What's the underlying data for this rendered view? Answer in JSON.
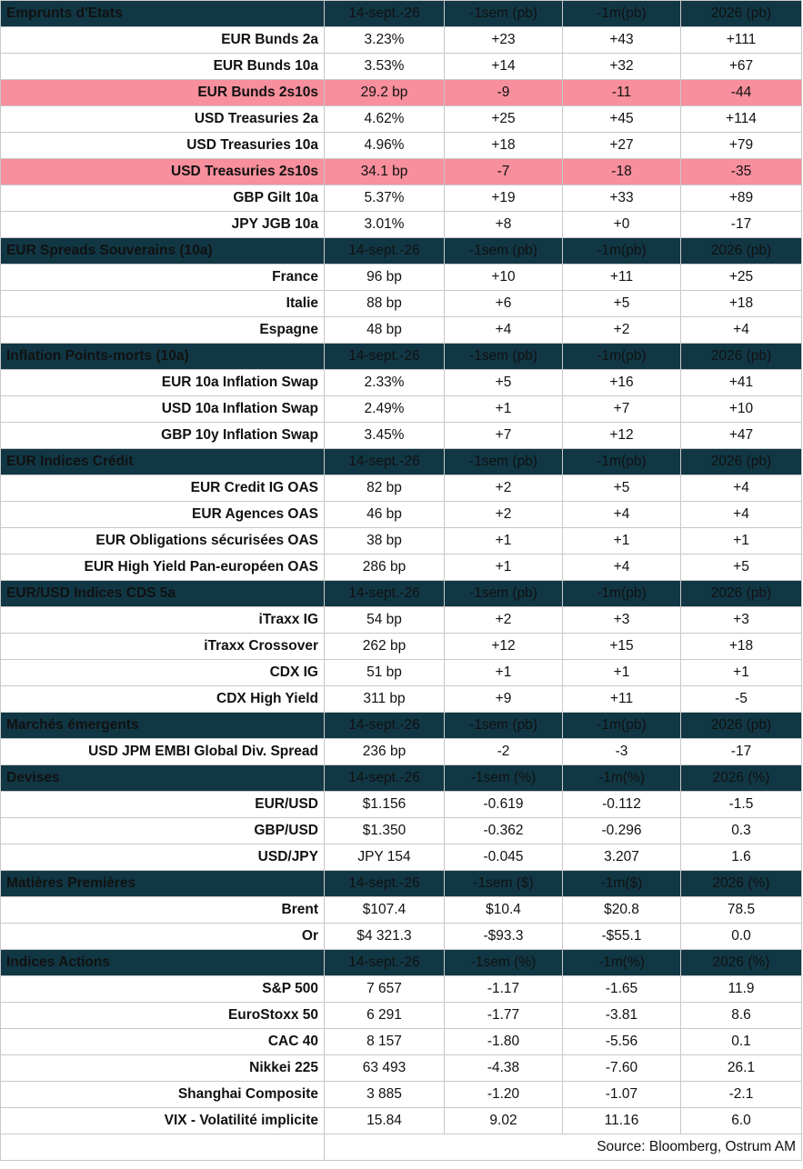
{
  "source": "Source: Bloomberg, Ostrum AM",
  "colors": {
    "header_bg": "#113745",
    "highlight_bg": "#f78f9c"
  },
  "sections": [
    {
      "title": "Emprunts d'Etats",
      "columns": [
        "14-sept.-26",
        "-1sem (pb)",
        "-1m(pb)",
        "2026 (pb)"
      ],
      "rows": [
        {
          "label": "EUR Bunds 2a",
          "values": [
            "3.23%",
            "+23",
            "+43",
            "+111"
          ],
          "highlight": false
        },
        {
          "label": "EUR Bunds 10a",
          "values": [
            "3.53%",
            "+14",
            "+32",
            "+67"
          ],
          "highlight": false
        },
        {
          "label": "EUR Bunds 2s10s",
          "values": [
            "29.2 bp",
            "-9",
            "-11",
            "-44"
          ],
          "highlight": true
        },
        {
          "label": "USD Treasuries 2a",
          "values": [
            "4.62%",
            "+25",
            "+45",
            "+114"
          ],
          "highlight": false
        },
        {
          "label": "USD Treasuries 10a",
          "values": [
            "4.96%",
            "+18",
            "+27",
            "+79"
          ],
          "highlight": false
        },
        {
          "label": "USD Treasuries 2s10s",
          "values": [
            "34.1 bp",
            "-7",
            "-18",
            "-35"
          ],
          "highlight": true
        },
        {
          "label": "GBP Gilt 10a",
          "values": [
            "5.37%",
            "+19",
            "+33",
            "+89"
          ],
          "highlight": false
        },
        {
          "label": "JPY JGB  10a",
          "values": [
            "3.01%",
            "+8",
            "+0",
            "-17"
          ],
          "highlight": false
        }
      ]
    },
    {
      "title": "EUR Spreads Souverains (10a)",
      "columns": [
        "14-sept.-26",
        "-1sem (pb)",
        "-1m(pb)",
        "2026 (pb)"
      ],
      "rows": [
        {
          "label": "France",
          "values": [
            "96 bp",
            "+10",
            "+11",
            "+25"
          ],
          "highlight": false
        },
        {
          "label": "Italie",
          "values": [
            "88 bp",
            "+6",
            "+5",
            "+18"
          ],
          "highlight": false
        },
        {
          "label": "Espagne",
          "values": [
            "48 bp",
            "+4",
            "+2",
            "+4"
          ],
          "highlight": false
        }
      ]
    },
    {
      "title": " Inflation Points-morts (10a)",
      "columns": [
        "14-sept.-26",
        "-1sem (pb)",
        "-1m(pb)",
        "2026 (pb)"
      ],
      "rows": [
        {
          "label": "EUR 10a Inflation Swap",
          "values": [
            "2.33%",
            "+5",
            "+16",
            "+41"
          ],
          "highlight": false
        },
        {
          "label": "USD 10a Inflation Swap",
          "values": [
            "2.49%",
            "+1",
            "+7",
            "+10"
          ],
          "highlight": false
        },
        {
          "label": "GBP 10y Inflation Swap",
          "values": [
            "3.45%",
            "+7",
            "+12",
            "+47"
          ],
          "highlight": false
        }
      ]
    },
    {
      "title": "EUR Indices Crédit",
      "columns": [
        "14-sept.-26",
        "-1sem (pb)",
        "-1m(pb)",
        "2026 (pb)"
      ],
      "rows": [
        {
          "label": "EUR Credit IG OAS",
          "values": [
            "82 bp",
            "+2",
            "+5",
            "+4"
          ],
          "highlight": false
        },
        {
          "label": "EUR Agences OAS",
          "values": [
            "46 bp",
            "+2",
            "+4",
            "+4"
          ],
          "highlight": false
        },
        {
          "label": "EUR Obligations sécurisées OAS",
          "values": [
            "38 bp",
            "+1",
            "+1",
            "+1"
          ],
          "highlight": false
        },
        {
          "label": "EUR High Yield Pan-européen OAS",
          "values": [
            "286 bp",
            "+1",
            "+4",
            "+5"
          ],
          "highlight": false
        }
      ]
    },
    {
      "title": "EUR/USD Indices CDS 5a",
      "columns": [
        "14-sept.-26",
        "-1sem (pb)",
        "-1m(pb)",
        "2026 (pb)"
      ],
      "rows": [
        {
          "label": "iTraxx IG",
          "values": [
            "54 bp",
            "+2",
            "+3",
            "+3"
          ],
          "highlight": false
        },
        {
          "label": "iTraxx Crossover",
          "values": [
            "262 bp",
            "+12",
            "+15",
            "+18"
          ],
          "highlight": false
        },
        {
          "label": "CDX IG",
          "values": [
            "51 bp",
            "+1",
            "+1",
            "+1"
          ],
          "highlight": false
        },
        {
          "label": "CDX High Yield",
          "values": [
            "311 bp",
            "+9",
            "+11",
            "-5"
          ],
          "highlight": false
        }
      ]
    },
    {
      "title": "Marchés émergents",
      "columns": [
        "14-sept.-26",
        "-1sem (pb)",
        "-1m(pb)",
        "2026 (pb)"
      ],
      "rows": [
        {
          "label": "USD JPM EMBI Global Div. Spread",
          "values": [
            "236 bp",
            "-2",
            "-3",
            "-17"
          ],
          "highlight": false
        }
      ]
    },
    {
      "title": "Devises",
      "columns": [
        "14-sept.-26",
        "-1sem (%)",
        "-1m(%)",
        "2026 (%)"
      ],
      "rows": [
        {
          "label": "EUR/USD",
          "values": [
            "$1.156",
            "-0.619",
            "-0.112",
            "-1.5"
          ],
          "highlight": false
        },
        {
          "label": "GBP/USD",
          "values": [
            "$1.350",
            "-0.362",
            "-0.296",
            "0.3"
          ],
          "highlight": false
        },
        {
          "label": "USD/JPY",
          "values": [
            "JPY 154",
            "-0.045",
            "3.207",
            "1.6"
          ],
          "highlight": false
        }
      ]
    },
    {
      "title": "Matières Premières",
      "columns": [
        "14-sept.-26",
        "-1sem ($)",
        "-1m($)",
        "2026 (%)"
      ],
      "rows": [
        {
          "label": "Brent",
          "values": [
            "$107.4",
            "$10.4",
            "$20.8",
            "78.5"
          ],
          "highlight": false
        },
        {
          "label": "Or",
          "values": [
            "$4 321.3",
            "-$93.3",
            "-$55.1",
            "0.0"
          ],
          "highlight": false
        }
      ]
    },
    {
      "title": "Indices Actions",
      "columns": [
        "14-sept.-26",
        "-1sem (%)",
        "-1m(%)",
        "2026 (%)"
      ],
      "rows": [
        {
          "label": "S&P 500",
          "values": [
            "7 657",
            "-1.17",
            "-1.65",
            "11.9"
          ],
          "highlight": false
        },
        {
          "label": "EuroStoxx 50",
          "values": [
            "6 291",
            "-1.77",
            "-3.81",
            "8.6"
          ],
          "highlight": false
        },
        {
          "label": "CAC 40",
          "values": [
            "8 157",
            "-1.80",
            "-5.56",
            "0.1"
          ],
          "highlight": false
        },
        {
          "label": "Nikkei 225",
          "values": [
            "63 493",
            "-4.38",
            "-7.60",
            "26.1"
          ],
          "highlight": false
        },
        {
          "label": "Shanghai Composite",
          "values": [
            "3 885",
            "-1.20",
            "-1.07",
            "-2.1"
          ],
          "highlight": false
        },
        {
          "label": "VIX - Volatilité implicite",
          "values": [
            "15.84",
            "9.02",
            "11.16",
            "6.0"
          ],
          "highlight": false
        }
      ]
    }
  ]
}
